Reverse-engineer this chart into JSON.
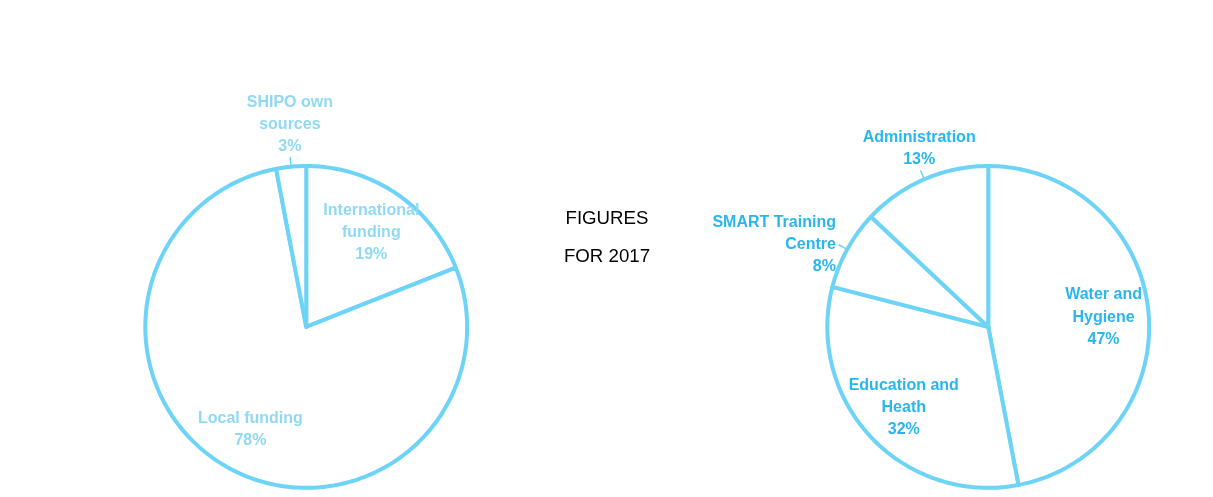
{
  "chart_data": [
    {
      "type": "pie",
      "categories": [
        "International funding",
        "Local funding",
        "SHIPO own sources"
      ],
      "values": [
        19,
        78,
        3
      ],
      "colors": [
        "#ffffff",
        "#ffffff",
        "#ffffff"
      ],
      "value_labels": [
        "19%",
        "78%",
        "3%"
      ]
    },
    {
      "type": "other",
      "annotations": [
        "FIGURES FOR 2017"
      ]
    },
    {
      "type": "pie",
      "categories": [
        "Water and Hygiene",
        "Education and Heath",
        "SMART Training Centre",
        "Administration"
      ],
      "values": [
        47,
        32,
        8,
        13
      ],
      "colors": [
        "#ffffff",
        "#ffffff",
        "#ffffff",
        "#ffffff"
      ],
      "value_labels": [
        "47%",
        "32%",
        "8%",
        "13%"
      ]
    }
  ]
}
